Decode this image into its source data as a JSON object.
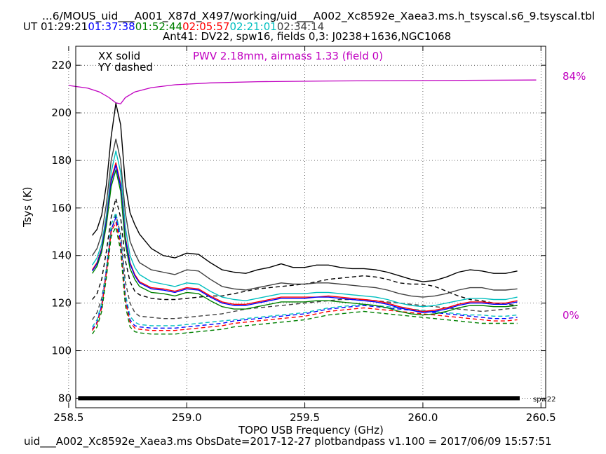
{
  "header": {
    "path": "...6/MOUS_uid___A001_X87d_X497/working/uid___A002_Xc8592e_Xaea3.ms.h_tsyscal.s6_9.tsyscal.tbl",
    "ut_label": "UT",
    "ut_times": [
      {
        "text": "01:29:21",
        "color": "#000000"
      },
      {
        "text": "01:37:38",
        "color": "#0000ff"
      },
      {
        "text": "01:52:44",
        "color": "#008000"
      },
      {
        "text": "02:05:57",
        "color": "#ff0000"
      },
      {
        "text": "02:21:01",
        "color": "#00bfbf"
      },
      {
        "text": "02:34:14",
        "color": "#404040"
      }
    ],
    "subtitle": "Ant41: DV22,  spw16,  fields 0,3: J0238+1636,NGC1068"
  },
  "footer": {
    "text": "uid___A002_Xc8592e_Xaea3.ms  ObsDate=2017-12-27   plotbandpass v1.100 = 2017/06/09 15:57:51"
  },
  "chart_data": {
    "type": "line",
    "xlabel": "TOPO USB Frequency (GHz)",
    "ylabel": "Tsys (K)",
    "xlim": [
      258.53,
      260.52
    ],
    "ylim": [
      76,
      228
    ],
    "xticks": [
      258.5,
      259.0,
      259.5,
      260.0,
      260.5
    ],
    "xtick_labels": [
      "258.5",
      "259.0",
      "259.5",
      "260.0",
      "260.5"
    ],
    "yticks": [
      80,
      100,
      120,
      140,
      160,
      180,
      200,
      220
    ],
    "ytick_labels": [
      "80",
      "100",
      "120",
      "140",
      "160",
      "180",
      "200",
      "220"
    ],
    "grid": true,
    "annotations": {
      "xx_label": "XX solid",
      "yy_label": "YY dashed",
      "pwv_label": "PWV 2.18mm, airmass 1.33 (field 0)",
      "right_top_label": "84%",
      "right_bottom_label": "0%",
      "spw_label": "spw22",
      "annotation_color": "#c000c0"
    },
    "spw_bar": {
      "x_start": 258.54,
      "x_end": 260.41,
      "y": 80
    },
    "transmission": {
      "name": "atmospheric transmission",
      "color": "#c000c0",
      "x": [
        258.5,
        258.58,
        258.63,
        258.67,
        258.7,
        258.72,
        258.74,
        258.78,
        258.85,
        258.95,
        259.1,
        259.3,
        259.6,
        260.0,
        260.48
      ],
      "y": [
        211.5,
        210.4,
        208.8,
        206.5,
        204.2,
        203.8,
        206.4,
        208.8,
        210.6,
        211.8,
        212.6,
        213.1,
        213.4,
        213.6,
        213.8
      ]
    },
    "x": [
      258.6,
      258.62,
      258.64,
      258.66,
      258.68,
      258.7,
      258.72,
      258.74,
      258.76,
      258.78,
      258.8,
      258.85,
      258.9,
      258.95,
      259.0,
      259.05,
      259.1,
      259.15,
      259.2,
      259.25,
      259.3,
      259.35,
      259.4,
      259.45,
      259.5,
      259.55,
      259.6,
      259.65,
      259.7,
      259.75,
      259.8,
      259.85,
      259.9,
      259.95,
      260.0,
      260.05,
      260.1,
      260.15,
      260.2,
      260.25,
      260.3,
      260.35,
      260.4
    ],
    "series": [
      {
        "style": "solid",
        "color": "#000000",
        "values": [
          148.5,
          151,
          157,
          170,
          190,
          204,
          195,
          170,
          158,
          153,
          149,
          143,
          140,
          139,
          141,
          140.5,
          137,
          134,
          133,
          132.5,
          134,
          135,
          136.5,
          135,
          135,
          136,
          136,
          135,
          134.5,
          134.5,
          134,
          133,
          131.5,
          130,
          129,
          129.5,
          131,
          133,
          134,
          133.5,
          132.5,
          132.5,
          133.5
        ]
      },
      {
        "style": "solid",
        "color": "#404040",
        "values": [
          140,
          143,
          149,
          162,
          180,
          189,
          180,
          158,
          146,
          141,
          137,
          134,
          133,
          132,
          134,
          133.5,
          130,
          127,
          126,
          125.5,
          126.5,
          127.5,
          128.5,
          128,
          128,
          128.5,
          128.5,
          128,
          127.5,
          127,
          126.5,
          125.5,
          124,
          123,
          122.5,
          123,
          124,
          125.5,
          126.5,
          126.5,
          125.5,
          125.5,
          126
        ]
      },
      {
        "style": "solid",
        "color": "#00bfbf",
        "values": [
          136,
          139,
          145,
          157,
          175,
          184,
          175,
          152,
          140,
          135,
          132,
          129,
          128,
          127,
          128.5,
          128,
          125,
          122.5,
          121.5,
          121,
          122,
          123,
          124,
          124,
          124,
          124.5,
          124.5,
          124,
          123.5,
          123,
          122.5,
          121.5,
          120,
          119,
          118.5,
          119,
          120,
          121,
          122,
          122,
          121.5,
          121.5,
          122.5
        ]
      },
      {
        "style": "solid",
        "color": "#ff0000",
        "values": [
          134,
          137,
          143,
          155,
          172,
          179,
          170,
          148,
          137,
          132,
          129,
          126.5,
          126,
          125,
          126.5,
          126,
          123,
          120.5,
          119.5,
          119.5,
          120.5,
          121.5,
          122.5,
          122.5,
          122.5,
          122.5,
          123,
          122.5,
          122,
          121.5,
          121,
          120,
          118.5,
          117.5,
          116.5,
          117,
          118,
          119.5,
          120.5,
          120.5,
          120,
          120,
          121
        ]
      },
      {
        "style": "solid",
        "color": "#0000ff",
        "values": [
          133.5,
          136.5,
          142.5,
          154.5,
          171,
          178,
          169,
          147,
          136.5,
          131.5,
          128.5,
          126,
          125.5,
          124.5,
          126,
          125.5,
          122.5,
          120,
          119,
          119,
          120,
          121,
          122,
          122,
          122,
          122.5,
          122.5,
          122,
          121.5,
          121,
          120.5,
          119.5,
          118,
          117,
          116,
          116.5,
          117.5,
          119,
          120,
          120,
          119.5,
          119.5,
          120.5
        ]
      },
      {
        "style": "solid",
        "color": "#008000",
        "values": [
          132.5,
          135.5,
          141.5,
          153,
          169,
          176,
          167,
          145,
          134.5,
          130,
          127,
          124.5,
          124,
          123,
          124.5,
          124,
          121,
          118.5,
          117.5,
          117.5,
          118.5,
          119.5,
          120.5,
          120.5,
          120.5,
          121,
          121,
          120.5,
          120,
          119.5,
          119,
          118,
          116.5,
          115.5,
          115,
          115.5,
          116.5,
          118,
          119,
          119,
          118.5,
          118.5,
          119
        ]
      },
      {
        "style": "dashed",
        "color": "#000000",
        "values": [
          121.5,
          124,
          130,
          142,
          156,
          164,
          156,
          138,
          129,
          125,
          123.5,
          122,
          121.5,
          121.5,
          122,
          122.5,
          123,
          123,
          124,
          125,
          126,
          126.5,
          127,
          127.5,
          128,
          129,
          130,
          130.5,
          131,
          131.5,
          131,
          130,
          128.5,
          128,
          128,
          127,
          125,
          123,
          121.5,
          121,
          120,
          119.5,
          119
        ]
      },
      {
        "style": "dashed",
        "color": "#404040",
        "values": [
          113,
          116,
          122,
          134,
          150,
          157,
          149,
          129,
          120,
          116,
          114.5,
          114,
          113.5,
          113.5,
          114,
          114.5,
          115,
          115.5,
          116.5,
          117.5,
          118,
          118.5,
          119,
          119.5,
          120,
          120.5,
          121,
          121.5,
          121.5,
          121.5,
          121,
          120.5,
          120,
          119.5,
          119,
          118.5,
          118,
          117.5,
          117,
          116.5,
          117,
          117.5,
          118
        ]
      },
      {
        "style": "dashed",
        "color": "#00bfbf",
        "values": [
          110,
          113,
          120,
          135,
          153,
          158,
          148,
          124,
          114.5,
          112,
          111,
          110.5,
          110.5,
          110.5,
          111,
          111.5,
          112,
          112.5,
          113,
          113.5,
          114,
          114.5,
          115,
          115.5,
          116,
          117,
          118,
          118.5,
          119,
          119.5,
          119,
          118.5,
          118,
          117.5,
          117,
          116.5,
          116,
          115.5,
          115,
          115,
          114.5,
          114.5,
          115
        ]
      },
      {
        "style": "dashed",
        "color": "#0000ff",
        "values": [
          109,
          112,
          119,
          134,
          151,
          156,
          146,
          122,
          113,
          110.5,
          110,
          109.5,
          109.5,
          109.5,
          110,
          110.5,
          111,
          111.5,
          112.5,
          113,
          113.5,
          114,
          114.5,
          115,
          115.5,
          116.5,
          117.5,
          118,
          118.5,
          119,
          118.5,
          118,
          117.5,
          117,
          116.5,
          116,
          115.5,
          115,
          114.5,
          114,
          113.5,
          113.5,
          114
        ]
      },
      {
        "style": "dashed",
        "color": "#ff0000",
        "values": [
          108.5,
          111.5,
          118,
          133,
          150,
          154,
          144,
          121,
          112,
          109.5,
          109,
          108.5,
          108.5,
          108.5,
          109,
          109.5,
          110,
          110.5,
          111.5,
          112,
          112.5,
          113,
          113.5,
          114,
          114.5,
          115.5,
          116.5,
          117,
          117.5,
          118,
          117.5,
          117,
          116.5,
          116,
          115.5,
          115,
          114.5,
          114,
          113.5,
          113,
          112.5,
          112.5,
          113
        ]
      },
      {
        "style": "dashed",
        "color": "#008000",
        "values": [
          107,
          110,
          116.5,
          131,
          148,
          152,
          142,
          119,
          110,
          108,
          107.5,
          107,
          107,
          107,
          107.5,
          108,
          108.5,
          109,
          110,
          110.5,
          111,
          111.5,
          112,
          112.5,
          113,
          114,
          115,
          115.5,
          116,
          116.5,
          116,
          115.5,
          115,
          114.5,
          114,
          113.5,
          113,
          112.5,
          112,
          111.5,
          111.5,
          111.5,
          111.5
        ]
      }
    ]
  }
}
